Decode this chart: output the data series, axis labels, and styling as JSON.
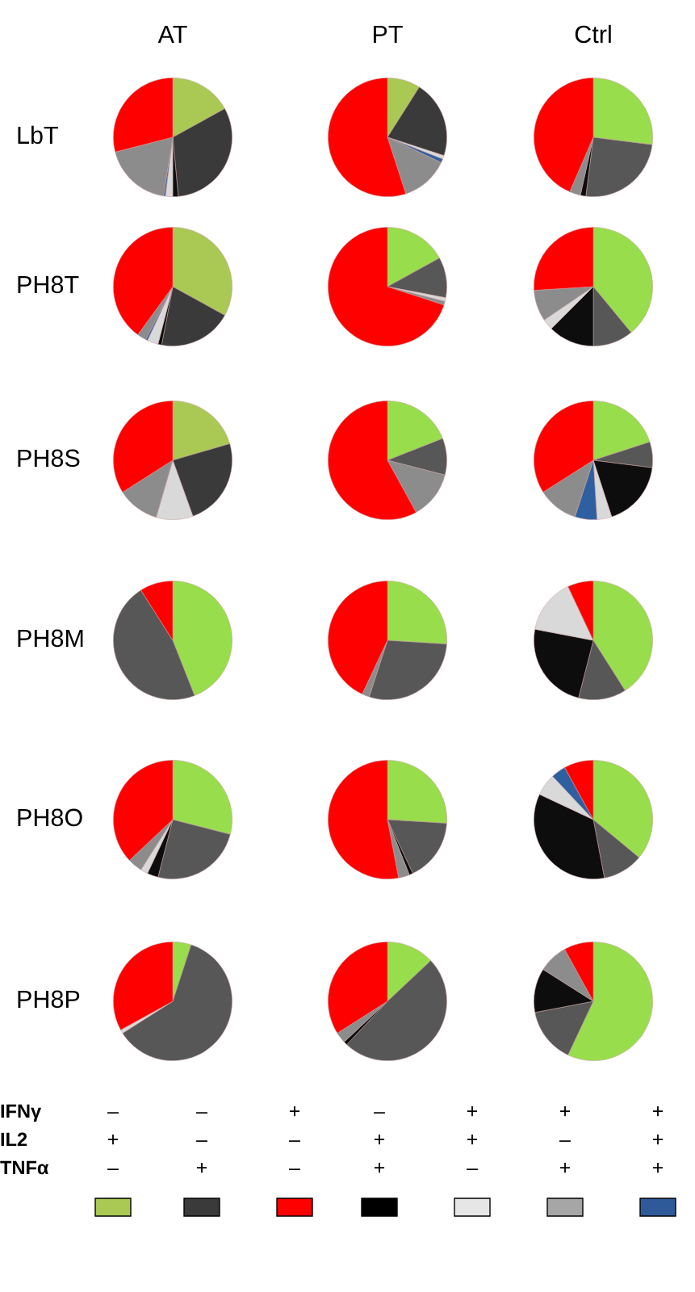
{
  "chart_data": [
    {
      "type": "pie",
      "title": "AT",
      "ylabel": "LbT",
      "categories": [
        null,
        null,
        null,
        null,
        null,
        null,
        null
      ],
      "values": [
        17,
        31.5,
        1.5,
        2,
        0.5,
        18.5,
        29
      ],
      "colors": [
        "#a9c954",
        "#3a3a3a",
        "#0d0d0d",
        "#d9d9d9",
        "#2e5fa0",
        "#8c8c8c",
        "#ff0000"
      ]
    },
    {
      "type": "pie",
      "title": "PT",
      "categories": [
        null,
        null,
        null,
        null,
        null,
        null
      ],
      "values": [
        9,
        21,
        1,
        1,
        13,
        55
      ],
      "colors": [
        "#a9c954",
        "#3a3a3a",
        "#d9d9d9",
        "#2e5fa0",
        "#8c8c8c",
        "#ff0000"
      ]
    },
    {
      "type": "pie",
      "title": "Ctrl",
      "categories": [
        null,
        null,
        null,
        null,
        null
      ],
      "values": [
        27,
        25,
        1.5,
        3,
        43.5
      ],
      "colors": [
        "#98dd4b",
        "#575757",
        "#0d0d0d",
        "#8c8c8c",
        "#ff0000"
      ]
    },
    {
      "type": "pie",
      "ylabel": "PH8T",
      "categories": [
        null,
        null,
        null,
        null,
        null,
        null,
        null
      ],
      "values": [
        33,
        20,
        1,
        3,
        0.5,
        2.5,
        40
      ],
      "colors": [
        "#a9c954",
        "#3a3a3a",
        "#0d0d0d",
        "#d9d9d9",
        "#2e5fa0",
        "#8c8c8c",
        "#ff0000"
      ]
    },
    {
      "type": "pie",
      "categories": [
        null,
        null,
        null,
        null,
        null
      ],
      "values": [
        17,
        11,
        1,
        1,
        70
      ],
      "colors": [
        "#98dd4b",
        "#575757",
        "#d9d9d9",
        "#8c8c8c",
        "#ff0000"
      ]
    },
    {
      "type": "pie",
      "categories": [
        null,
        null,
        null,
        null,
        null,
        null
      ],
      "values": [
        39,
        11,
        12.5,
        3,
        8.5,
        26
      ],
      "colors": [
        "#98dd4b",
        "#575757",
        "#0d0d0d",
        "#d9d9d9",
        "#8c8c8c",
        "#ff0000"
      ]
    },
    {
      "type": "pie",
      "ylabel": "PH8S",
      "categories": [
        null,
        null,
        null,
        null,
        null
      ],
      "values": [
        20.5,
        24,
        10,
        11.5,
        34
      ],
      "colors": [
        "#a9c954",
        "#3a3a3a",
        "#d9d9d9",
        "#8c8c8c",
        "#ff0000"
      ]
    },
    {
      "type": "pie",
      "categories": [
        null,
        null,
        null,
        null
      ],
      "values": [
        19,
        10,
        13,
        58
      ],
      "colors": [
        "#98dd4b",
        "#575757",
        "#8c8c8c",
        "#ff0000"
      ]
    },
    {
      "type": "pie",
      "categories": [
        null,
        null,
        null,
        null,
        null,
        null,
        null
      ],
      "values": [
        20,
        7,
        18,
        4,
        6,
        11,
        34
      ],
      "colors": [
        "#98dd4b",
        "#575757",
        "#0d0d0d",
        "#d9d9d9",
        "#2e5fa0",
        "#8c8c8c",
        "#ff0000"
      ]
    },
    {
      "type": "pie",
      "ylabel": "PH8M",
      "categories": [
        null,
        null,
        null
      ],
      "values": [
        44,
        47,
        9
      ],
      "colors": [
        "#98dd4b",
        "#575757",
        "#ff0000"
      ]
    },
    {
      "type": "pie",
      "categories": [
        null,
        null,
        null,
        null
      ],
      "values": [
        26,
        29,
        2,
        43
      ],
      "colors": [
        "#98dd4b",
        "#575757",
        "#8c8c8c",
        "#ff0000"
      ]
    },
    {
      "type": "pie",
      "categories": [
        null,
        null,
        null,
        null,
        null
      ],
      "values": [
        41,
        13,
        24,
        15,
        7
      ],
      "colors": [
        "#98dd4b",
        "#575757",
        "#0d0d0d",
        "#d9d9d9",
        "#ff0000"
      ]
    },
    {
      "type": "pie",
      "ylabel": "PH8O",
      "categories": [
        null,
        null,
        null,
        null,
        null,
        null
      ],
      "values": [
        29,
        25,
        3,
        2,
        4,
        37
      ],
      "colors": [
        "#98dd4b",
        "#575757",
        "#0d0d0d",
        "#d9d9d9",
        "#8c8c8c",
        "#ff0000"
      ]
    },
    {
      "type": "pie",
      "categories": [
        null,
        null,
        null,
        null,
        null
      ],
      "values": [
        26,
        17,
        1,
        3,
        53
      ],
      "colors": [
        "#98dd4b",
        "#575757",
        "#0d0d0d",
        "#8c8c8c",
        "#ff0000"
      ]
    },
    {
      "type": "pie",
      "categories": [
        null,
        null,
        null,
        null,
        null,
        null
      ],
      "values": [
        36,
        11,
        35,
        6,
        4,
        8
      ],
      "colors": [
        "#98dd4b",
        "#575757",
        "#0d0d0d",
        "#d9d9d9",
        "#2e5fa0",
        "#ff0000"
      ]
    },
    {
      "type": "pie",
      "ylabel": "PH8P",
      "categories": [
        null,
        null,
        null,
        null
      ],
      "values": [
        5,
        61,
        1,
        33
      ],
      "colors": [
        "#98dd4b",
        "#575757",
        "#d9d9d9",
        "#ff0000"
      ]
    },
    {
      "type": "pie",
      "categories": [
        null,
        null,
        null,
        null,
        null
      ],
      "values": [
        13,
        49,
        1,
        3,
        34
      ],
      "colors": [
        "#98dd4b",
        "#575757",
        "#0d0d0d",
        "#8c8c8c",
        "#ff0000"
      ]
    },
    {
      "type": "pie",
      "categories": [
        null,
        null,
        null,
        null,
        null
      ],
      "values": [
        57,
        15,
        12,
        8,
        8
      ],
      "colors": [
        "#98dd4b",
        "#575757",
        "#0d0d0d",
        "#8c8c8c",
        "#ff0000"
      ]
    },
    {
      "type": "other",
      "y_categories": [
        "IFNγ",
        "IL2",
        "TNFα"
      ],
      "cell_labels": [
        [
          "–",
          "–",
          "+",
          "–",
          "+",
          "+",
          "+"
        ],
        [
          "+",
          "–",
          "–",
          "+",
          "+",
          "–",
          "+"
        ],
        [
          "–",
          "+",
          "–",
          "+",
          "–",
          "+",
          "+"
        ]
      ],
      "colors": [
        "#a9c954",
        "#3a3a3a",
        "#ff0000",
        "#000000",
        "#e6e6e6",
        "#a6a6a6",
        "#2e5a9a"
      ]
    }
  ]
}
